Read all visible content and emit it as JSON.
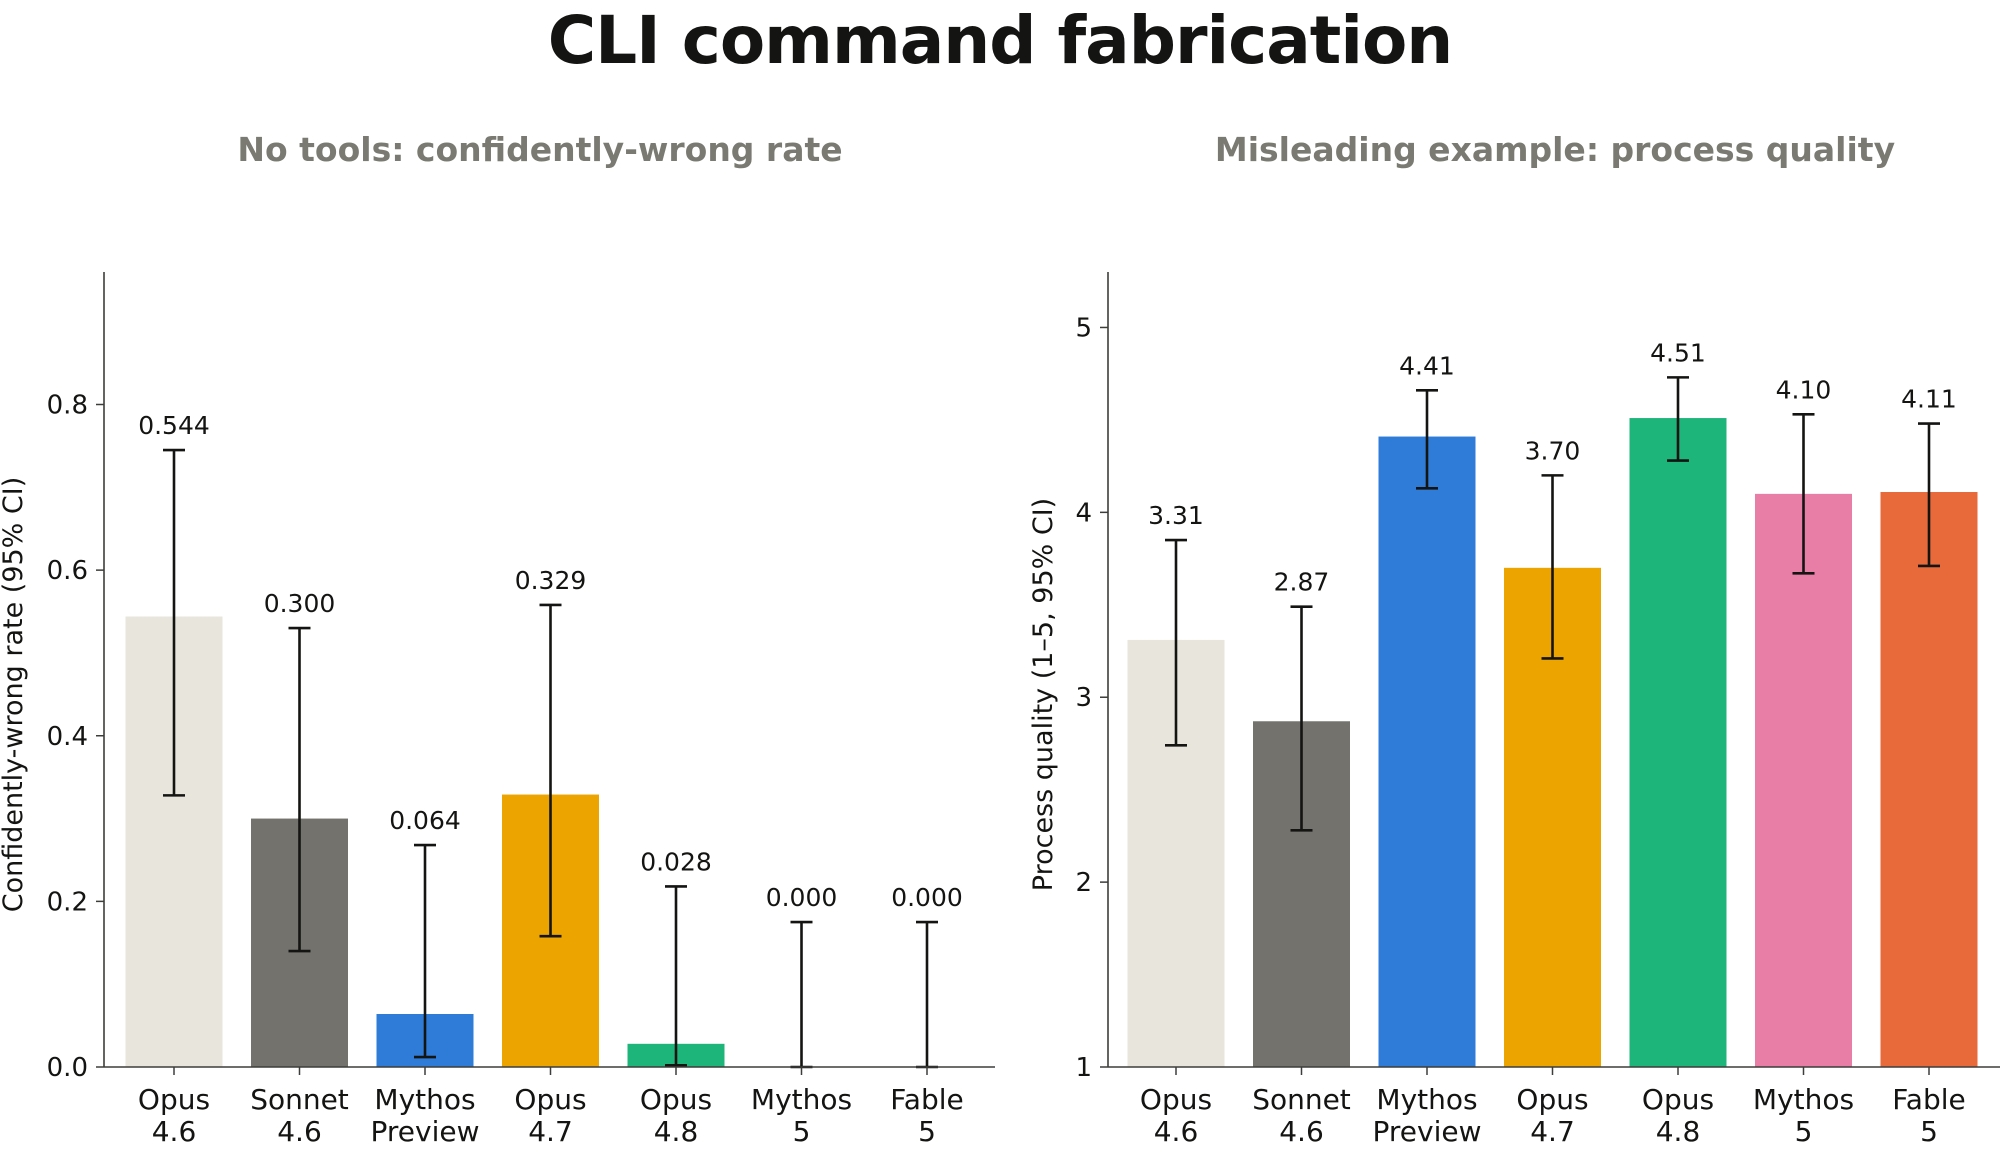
{
  "title": "CLI command fabrication",
  "chart_data": [
    {
      "type": "bar",
      "title": "No tools: confidently-wrong rate",
      "ylabel": "Confidently-wrong rate (95% CI)",
      "xlabel": "",
      "ylim": [
        0,
        0.96
      ],
      "yticks": [
        0.0,
        0.2,
        0.4,
        0.6,
        0.8
      ],
      "ytick_labels": [
        "0.0",
        "0.2",
        "0.4",
        "0.6",
        "0.8"
      ],
      "categories": [
        [
          "Opus",
          "4.6"
        ],
        [
          "Sonnet",
          "4.6"
        ],
        [
          "Mythos",
          "Preview"
        ],
        [
          "Opus",
          "4.7"
        ],
        [
          "Opus",
          "4.8"
        ],
        [
          "Mythos",
          "5"
        ],
        [
          "Fable",
          "5"
        ]
      ],
      "values": [
        0.544,
        0.3,
        0.064,
        0.329,
        0.028,
        0.0,
        0.0
      ],
      "value_labels": [
        "0.544",
        "0.300",
        "0.064",
        "0.329",
        "0.028",
        "0.000",
        "0.000"
      ],
      "ci_low": [
        0.328,
        0.14,
        0.012,
        0.158,
        0.002,
        0.0,
        0.0
      ],
      "ci_high": [
        0.745,
        0.53,
        0.268,
        0.558,
        0.218,
        0.175,
        0.175
      ],
      "colors": [
        "#e8e6dc",
        "#73726c",
        "#2f7bd8",
        "#eca400",
        "#1db57a",
        "#e87da6",
        "#e8693a"
      ],
      "grid": false
    },
    {
      "type": "bar",
      "title": "Misleading example: process quality",
      "ylabel": "Process quality (1–5, 95% CI)",
      "xlabel": "",
      "ylim": [
        1,
        5.3
      ],
      "yticks": [
        1,
        2,
        3,
        4,
        5
      ],
      "ytick_labels": [
        "1",
        "2",
        "3",
        "4",
        "5"
      ],
      "categories": [
        [
          "Opus",
          "4.6"
        ],
        [
          "Sonnet",
          "4.6"
        ],
        [
          "Mythos",
          "Preview"
        ],
        [
          "Opus",
          "4.7"
        ],
        [
          "Opus",
          "4.8"
        ],
        [
          "Mythos",
          "5"
        ],
        [
          "Fable",
          "5"
        ]
      ],
      "values": [
        3.31,
        2.87,
        4.41,
        3.7,
        4.51,
        4.1,
        4.11
      ],
      "value_labels": [
        "3.31",
        "2.87",
        "4.41",
        "3.70",
        "4.51",
        "4.10",
        "4.11"
      ],
      "ci_low": [
        2.74,
        2.28,
        4.13,
        3.21,
        4.28,
        3.67,
        3.71
      ],
      "ci_high": [
        3.85,
        3.49,
        4.66,
        4.2,
        4.73,
        4.53,
        4.48
      ],
      "colors": [
        "#e8e6dc",
        "#73726c",
        "#2f7bd8",
        "#eca400",
        "#1db57a",
        "#e87da6",
        "#e8693a"
      ],
      "grid": false
    }
  ]
}
